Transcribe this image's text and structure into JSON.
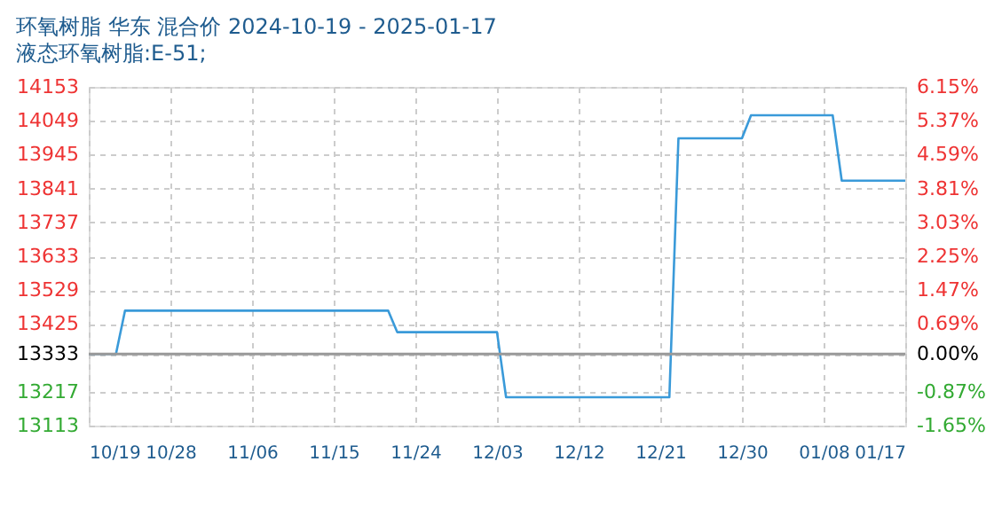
{
  "chart_data": {
    "type": "line",
    "title": "环氧树脂 华东 混合价 2024-10-19 - 2025-01-17",
    "subtitle": "液态环氧树脂:E-51;",
    "x": [
      "2024-10-19",
      "2024-10-22",
      "2024-10-23",
      "2024-11-21",
      "2024-11-22",
      "2024-12-03",
      "2024-12-04",
      "2024-12-22",
      "2024-12-23",
      "2024-12-30",
      "2024-12-31",
      "2025-01-09",
      "2025-01-10",
      "2025-01-17"
    ],
    "series": [
      {
        "color": "#3a9ad9",
        "values": [
          13333,
          13333,
          13466,
          13466,
          13400,
          13400,
          13200,
          13200,
          13995,
          13995,
          14066,
          14066,
          13865,
          13865
        ]
      }
    ],
    "xlim": [
      "2024-10-19",
      "2025-01-17"
    ],
    "xticks": [
      {
        "value": "2024-10-19",
        "label": "10/19"
      },
      {
        "value": "2024-10-28",
        "label": "10/28"
      },
      {
        "value": "2024-11-06",
        "label": "11/06"
      },
      {
        "value": "2024-11-15",
        "label": "11/15"
      },
      {
        "value": "2024-11-24",
        "label": "11/24"
      },
      {
        "value": "2024-12-03",
        "label": "12/03"
      },
      {
        "value": "2024-12-12",
        "label": "12/12"
      },
      {
        "value": "2024-12-21",
        "label": "12/21"
      },
      {
        "value": "2024-12-30",
        "label": "12/30"
      },
      {
        "value": "2025-01-08",
        "label": "01/08"
      },
      {
        "value": "2025-01-17",
        "label": "01/17"
      }
    ],
    "ylim": [
      13113,
      14153
    ],
    "yticks": [
      13113,
      13217,
      13333,
      13425,
      13529,
      13633,
      13737,
      13841,
      13945,
      14049,
      14153
    ],
    "y2lim": [
      -1.65,
      6.15
    ],
    "y2ticks": [
      {
        "value": -1.65,
        "label": "-1.65%"
      },
      {
        "value": -0.87,
        "label": "-0.87%"
      },
      {
        "value": 0,
        "label": "0.00%"
      },
      {
        "value": 0.69,
        "label": "0.69%"
      },
      {
        "value": 1.47,
        "label": "1.47%"
      },
      {
        "value": 2.25,
        "label": "2.25%"
      },
      {
        "value": 3.03,
        "label": "3.03%"
      },
      {
        "value": 3.81,
        "label": "3.81%"
      },
      {
        "value": 4.59,
        "label": "4.59%"
      },
      {
        "value": 5.37,
        "label": "5.37%"
      },
      {
        "value": 6.15,
        "label": "6.15%"
      }
    ],
    "ref_lines": [
      {
        "axis": "y2",
        "value": 0,
        "color": "#999999"
      }
    ],
    "grid": true,
    "marker": "none",
    "line_style": "solid"
  }
}
